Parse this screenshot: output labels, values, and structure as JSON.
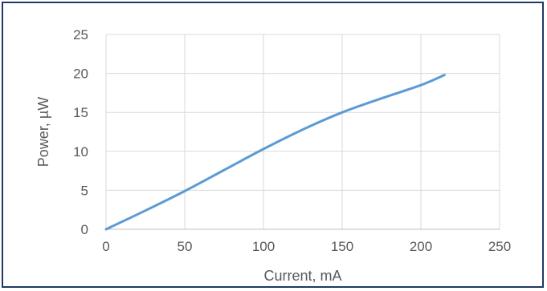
{
  "chart_data": {
    "type": "line",
    "title": "",
    "xlabel": "Current, mA",
    "ylabel": "Power, µW",
    "xlim": [
      0,
      250
    ],
    "ylim": [
      0,
      25
    ],
    "x_ticks": [
      0,
      50,
      100,
      150,
      200,
      250
    ],
    "y_ticks": [
      0,
      5,
      10,
      15,
      20,
      25
    ],
    "grid": true,
    "legend": "none",
    "colors": {
      "line": "#5b9bd5",
      "grid": "#d9d9d9",
      "axis": "#bfbfbf",
      "frame": "#1f3a64"
    },
    "series": [
      {
        "x": [
          0,
          25,
          50,
          75,
          100,
          125,
          150,
          175,
          200,
          215
        ],
        "y": [
          0,
          2.4,
          4.9,
          7.6,
          10.3,
          12.8,
          15.0,
          16.8,
          18.5,
          19.8
        ]
      }
    ]
  }
}
